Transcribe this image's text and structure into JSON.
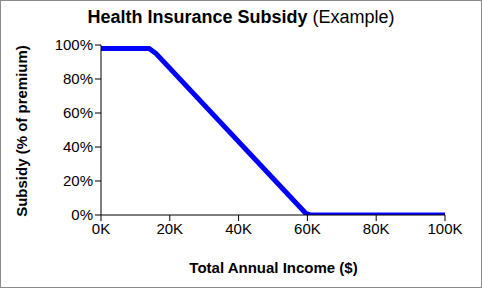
{
  "chart_data": {
    "type": "line",
    "title": "Health Insurance Subsidy",
    "subtitle": "(Example)",
    "x_label": "Total Annual Income ($)",
    "y_label": "Subsidy (% of premium)",
    "x": [
      0,
      14000,
      16000,
      59500,
      61000,
      100000
    ],
    "values": [
      98,
      98,
      95,
      1,
      0,
      0
    ],
    "color": "#0000ff",
    "xlim": [
      0,
      100000
    ],
    "xticks": [
      {
        "value": 0,
        "label": "0K"
      },
      {
        "value": 20000,
        "label": "20K"
      },
      {
        "value": 40000,
        "label": "40K"
      },
      {
        "value": 60000,
        "label": "60K"
      },
      {
        "value": 80000,
        "label": "80K"
      },
      {
        "value": 100000,
        "label": "100K"
      }
    ],
    "ylim": [
      0,
      100
    ],
    "yticks": [
      {
        "value": 0,
        "label": "0%"
      },
      {
        "value": 20,
        "label": "20%"
      },
      {
        "value": 40,
        "label": "40%"
      },
      {
        "value": 60,
        "label": "60%"
      },
      {
        "value": 80,
        "label": "80%"
      },
      {
        "value": 100,
        "label": "100%"
      }
    ],
    "grid": false
  }
}
